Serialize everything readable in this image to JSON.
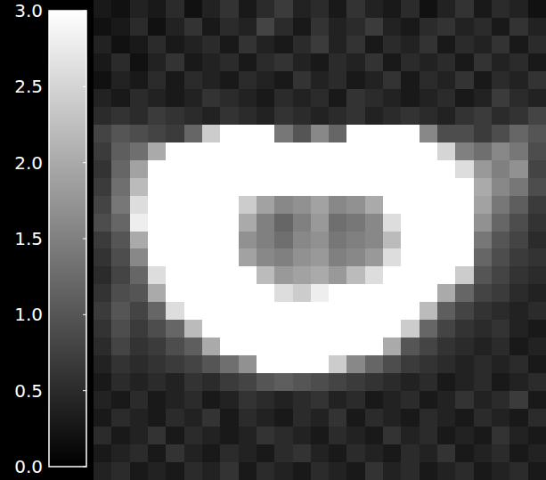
{
  "chart_data": {
    "type": "heatmap",
    "tick_labels": false,
    "color_range": [
      0,
      3
    ],
    "color_ticks": [
      {
        "value": 0,
        "label": "0.0"
      },
      {
        "value": 0.5,
        "label": "0.5"
      },
      {
        "value": 1,
        "label": "1.0"
      },
      {
        "value": 1.5,
        "label": "1.5"
      },
      {
        "value": 2,
        "label": "2.0"
      },
      {
        "value": 2.5,
        "label": "2.5"
      },
      {
        "value": 3,
        "label": "3.0"
      }
    ],
    "cells": [
      [
        0.3,
        0.2,
        0.4,
        0.3,
        0.5,
        0.2,
        0.4,
        0.6,
        0.3,
        0.5,
        0.7,
        0.4,
        0.5,
        0.3,
        0.6,
        0.4,
        0.3,
        0.5,
        0.2,
        0.4,
        0.6,
        0.3,
        0.5,
        0.4,
        0.2
      ],
      [
        0.2,
        0.3,
        0.5,
        0.2,
        0.4,
        0.6,
        0.3,
        0.5,
        0.4,
        0.8,
        0.5,
        0.3,
        0.6,
        0.4,
        0.5,
        0.7,
        0.4,
        0.3,
        0.5,
        0.6,
        0.4,
        0.5,
        0.3,
        0.6,
        0.4
      ],
      [
        0.4,
        0.2,
        0.3,
        0.5,
        0.3,
        0.4,
        0.5,
        0.3,
        0.6,
        0.4,
        0.3,
        0.5,
        0.7,
        0.4,
        0.6,
        0.3,
        0.5,
        0.4,
        0.6,
        0.3,
        0.5,
        0.4,
        0.6,
        0.3,
        0.5
      ],
      [
        0.3,
        0.5,
        0.2,
        0.4,
        0.6,
        0.3,
        0.4,
        0.5,
        0.3,
        0.5,
        0.6,
        0.4,
        0.3,
        0.5,
        0.4,
        0.6,
        0.3,
        0.5,
        0.4,
        0.5,
        0.3,
        0.6,
        0.4,
        0.5,
        0.3
      ],
      [
        0.2,
        0.4,
        0.3,
        0.5,
        0.3,
        0.5,
        0.4,
        0.3,
        0.5,
        0.4,
        0.3,
        0.6,
        0.4,
        0.5,
        0.3,
        0.4,
        0.6,
        0.3,
        0.5,
        0.4,
        0.6,
        0.3,
        0.5,
        0.4,
        0.6
      ],
      [
        0.4,
        0.3,
        0.5,
        0.4,
        0.3,
        0.4,
        0.6,
        0.5,
        0.4,
        0.3,
        0.5,
        0.4,
        0.5,
        0.3,
        0.6,
        0.5,
        0.4,
        0.3,
        0.4,
        0.5,
        0.3,
        0.4,
        0.7,
        0.5,
        0.4
      ],
      [
        0.5,
        0.6,
        0.5,
        0.7,
        0.6,
        0.5,
        0.4,
        0.6,
        0.5,
        0.4,
        0.6,
        0.5,
        0.4,
        0.5,
        0.6,
        0.4,
        0.5,
        0.6,
        0.5,
        0.4,
        0.6,
        0.7,
        0.5,
        0.6,
        0.8
      ],
      [
        0.8,
        1.0,
        0.9,
        0.8,
        0.7,
        1.2,
        2.4,
        3,
        3,
        3,
        1.4,
        1.0,
        1.6,
        1.2,
        3,
        3,
        3,
        3,
        1.6,
        0.9,
        0.9,
        0.7,
        0.9,
        1.2,
        1.0
      ],
      [
        0.7,
        1.1,
        1.3,
        2.0,
        3,
        3,
        3,
        3,
        3,
        3,
        3,
        3,
        3,
        3,
        3,
        3,
        3,
        3,
        3,
        2.5,
        1.5,
        1.3,
        1.6,
        1.4,
        0.9
      ],
      [
        0.6,
        1.2,
        1.9,
        3,
        3,
        3,
        3,
        3,
        3,
        3,
        3,
        3,
        3,
        3,
        3,
        3,
        3,
        3,
        3,
        3,
        2.6,
        1.8,
        1.5,
        1.7,
        0.8
      ],
      [
        0.7,
        1.3,
        2.2,
        3,
        3,
        3,
        3,
        3,
        3,
        3,
        3,
        3,
        3,
        3,
        3,
        3,
        3,
        3,
        3,
        3,
        3,
        2.0,
        1.6,
        1.4,
        0.9
      ],
      [
        0.8,
        1.4,
        2.6,
        3,
        3,
        3,
        3,
        3,
        2.4,
        1.9,
        1.6,
        1.7,
        1.9,
        1.6,
        1.7,
        2.0,
        3,
        3,
        3,
        3,
        3,
        1.9,
        1.4,
        1.1,
        0.7
      ],
      [
        0.9,
        1.2,
        2.8,
        3,
        3,
        3,
        3,
        3,
        2.0,
        1.5,
        1.2,
        1.5,
        1.8,
        1.3,
        1.4,
        1.6,
        2.6,
        3,
        3,
        3,
        3,
        1.7,
        1.2,
        0.9,
        0.6
      ],
      [
        0.7,
        1.0,
        2.0,
        3,
        3,
        3,
        3,
        3,
        1.7,
        1.5,
        1.3,
        1.6,
        1.7,
        1.4,
        1.5,
        1.6,
        2.2,
        3,
        3,
        3,
        3,
        1.4,
        1.0,
        0.8,
        0.5
      ],
      [
        0.6,
        0.9,
        1.6,
        3,
        3,
        3,
        3,
        3,
        1.9,
        1.6,
        1.5,
        1.7,
        1.8,
        1.5,
        1.6,
        1.8,
        2.6,
        3,
        3,
        3,
        3,
        1.2,
        0.9,
        0.7,
        0.6
      ],
      [
        0.5,
        0.8,
        1.2,
        2.6,
        3,
        3,
        3,
        3,
        3,
        2.2,
        1.8,
        1.9,
        2.0,
        1.8,
        2.2,
        2.6,
        3,
        3,
        3,
        3,
        2.4,
        1.0,
        0.8,
        0.6,
        0.5
      ],
      [
        0.6,
        0.9,
        1.0,
        2.0,
        3,
        3,
        3,
        3,
        3,
        3,
        2.6,
        2.4,
        2.8,
        3,
        3,
        3,
        3,
        3,
        3,
        2.0,
        1.2,
        0.8,
        0.7,
        0.5,
        0.4
      ],
      [
        0.7,
        1.0,
        0.8,
        1.2,
        2.6,
        3,
        3,
        3,
        3,
        3,
        3,
        3,
        3,
        3,
        3,
        3,
        3,
        3,
        2.2,
        1.1,
        0.8,
        0.6,
        0.5,
        0.4,
        0.5
      ],
      [
        0.6,
        0.9,
        0.7,
        0.9,
        1.2,
        2.2,
        3,
        3,
        3,
        3,
        3,
        3,
        3,
        3,
        3,
        3,
        3,
        2.4,
        1.2,
        0.8,
        0.6,
        0.5,
        0.6,
        0.4,
        0.3
      ],
      [
        0.5,
        0.8,
        0.6,
        0.7,
        0.9,
        1.1,
        2.0,
        3,
        3,
        3,
        3,
        3,
        3,
        3,
        3,
        3,
        2.0,
        1.0,
        0.8,
        0.6,
        0.5,
        0.4,
        0.5,
        0.3,
        0.4
      ],
      [
        0.4,
        0.6,
        0.5,
        0.6,
        0.7,
        0.8,
        1.0,
        1.3,
        1.7,
        3,
        3,
        3,
        3,
        2.4,
        1.6,
        1.2,
        0.9,
        0.7,
        0.6,
        0.5,
        0.4,
        0.5,
        0.4,
        0.5,
        0.3
      ],
      [
        0.3,
        0.5,
        0.4,
        0.5,
        0.4,
        0.6,
        0.5,
        0.7,
        0.8,
        1.0,
        1.1,
        1.0,
        0.9,
        0.8,
        0.7,
        0.6,
        0.5,
        0.4,
        0.5,
        0.3,
        0.4,
        0.5,
        0.3,
        0.4,
        0.5
      ],
      [
        0.4,
        0.3,
        0.5,
        0.3,
        0.4,
        0.5,
        0.3,
        0.4,
        0.6,
        0.5,
        0.4,
        0.5,
        0.6,
        0.4,
        0.5,
        0.3,
        0.4,
        0.5,
        0.3,
        0.4,
        0.6,
        0.4,
        0.5,
        0.7,
        0.3
      ],
      [
        0.3,
        0.5,
        0.4,
        0.3,
        0.5,
        0.4,
        0.6,
        0.3,
        0.5,
        0.4,
        0.3,
        0.5,
        0.4,
        0.6,
        0.3,
        0.5,
        0.4,
        0.3,
        0.5,
        0.4,
        0.3,
        0.5,
        0.4,
        0.3,
        0.5
      ],
      [
        0.5,
        0.3,
        0.4,
        0.6,
        0.3,
        0.5,
        0.4,
        0.3,
        0.4,
        0.6,
        0.5,
        0.4,
        0.3,
        0.5,
        0.4,
        0.3,
        0.6,
        0.4,
        0.5,
        0.3,
        0.4,
        0.3,
        0.6,
        0.4,
        0.3
      ],
      [
        0.3,
        0.4,
        0.5,
        0.3,
        0.6,
        0.4,
        0.3,
        0.5,
        0.4,
        0.3,
        0.5,
        0.6,
        0.4,
        0.3,
        0.5,
        0.4,
        0.3,
        0.5,
        0.4,
        0.6,
        0.3,
        0.4,
        0.5,
        0.3,
        0.4
      ],
      [
        0.4,
        0.5,
        0.3,
        0.4,
        0.3,
        0.5,
        0.4,
        0.6,
        0.3,
        0.5,
        0.4,
        0.3,
        0.5,
        0.4,
        0.3,
        0.6,
        0.4,
        0.5,
        0.3,
        0.4,
        0.5,
        0.3,
        0.4,
        0.5,
        0.3
      ]
    ]
  }
}
